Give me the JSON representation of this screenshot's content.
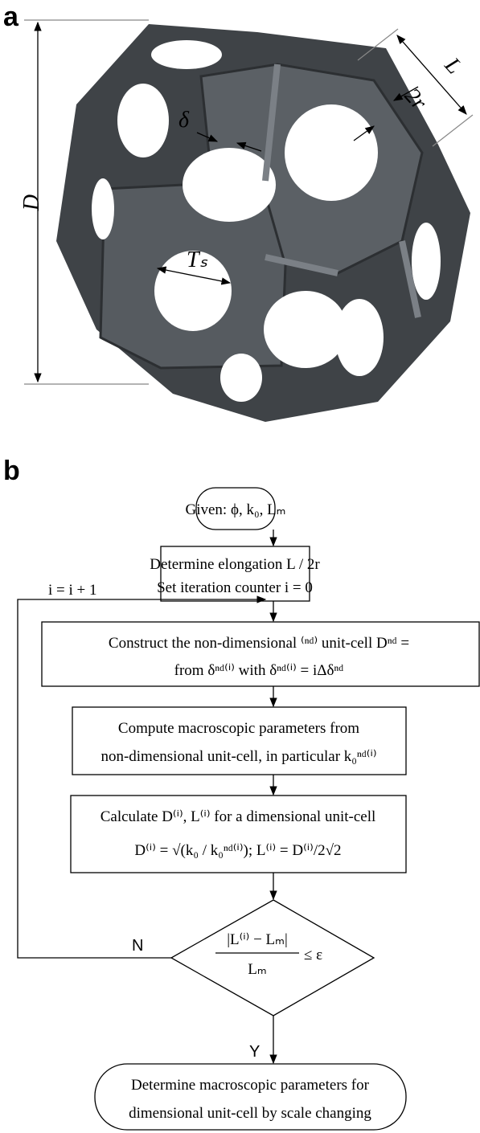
{
  "panel_a": {
    "label": "a",
    "dimensions": {
      "D": "D",
      "L": "L",
      "two_r": "2r",
      "delta": "δ",
      "Ts": "Tₛ"
    }
  },
  "panel_b": {
    "label": "b",
    "nodes": [
      {
        "lines": [
          "Given: ϕ, k₀, Lₘ"
        ]
      },
      {
        "lines": [
          "Determine elongation L / 2r",
          "Set iteration counter i = 0"
        ]
      },
      {
        "lines": [
          "Construct the non-dimensional ⁽ⁿᵈ⁾ unit-cell Dⁿᵈ =",
          "from δⁿᵈ⁽ⁱ⁾ with δⁿᵈ⁽ⁱ⁾ = iΔδⁿᵈ"
        ]
      },
      {
        "lines": [
          "Compute macroscopic parameters from",
          "non-dimensional unit-cell, in particular k₀ⁿᵈ⁽ⁱ⁾"
        ]
      },
      {
        "lines": [
          "Calculate D⁽ⁱ⁾, L⁽ⁱ⁾ for a dimensional unit-cell",
          "D⁽ⁱ⁾ = √(k₀ / k₀ⁿᵈ⁽ⁱ⁾); L⁽ⁱ⁾ = D⁽ⁱ⁾/2√2"
        ]
      },
      {
        "numerator": "|L⁽ⁱ⁾ − Lₘ|",
        "denominator": "Lₘ",
        "relation": "≤ ε"
      },
      {
        "lines": [
          "Determine macroscopic parameters for",
          "dimensional unit-cell by scale changing"
        ]
      }
    ],
    "loop_label": "i = i + 1",
    "no_label": "N",
    "yes_label": "Y"
  }
}
